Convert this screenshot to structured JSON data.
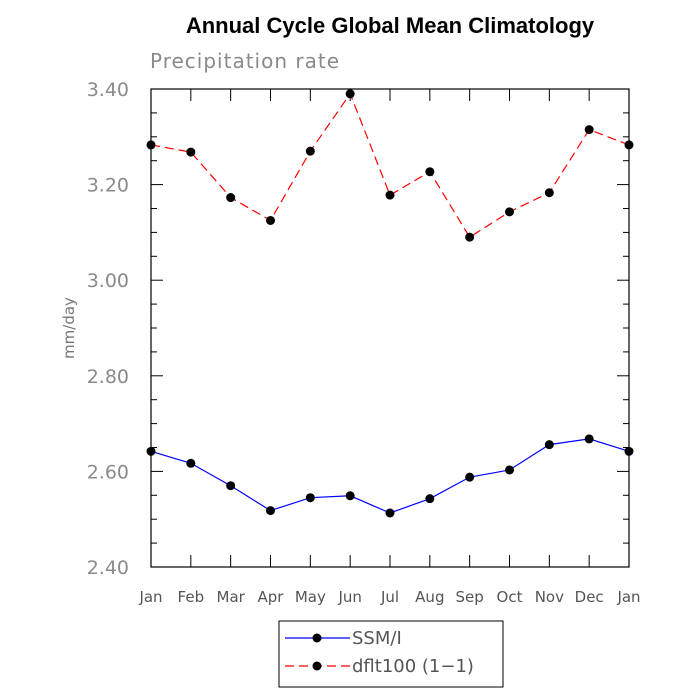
{
  "chart_data": {
    "type": "line",
    "title": "Annual Cycle Global Mean Climatology",
    "subtitle": "Precipitation rate",
    "xlabel": "",
    "ylabel": "mm/day",
    "ylim": [
      2.4,
      3.4
    ],
    "yticks": [
      "2.40",
      "2.60",
      "2.80",
      "3.00",
      "3.20",
      "3.40"
    ],
    "categories": [
      "Jan",
      "Feb",
      "Mar",
      "Apr",
      "May",
      "Jun",
      "Jul",
      "Aug",
      "Sep",
      "Oct",
      "Nov",
      "Dec",
      "Jan"
    ],
    "grid": false,
    "legend_position": "bottom",
    "series": [
      {
        "name": "SSM/I",
        "color": "#0000ff",
        "line_style": "solid",
        "marker": "filled-circle",
        "values": [
          2.642,
          2.617,
          2.57,
          2.518,
          2.545,
          2.549,
          2.513,
          2.543,
          2.588,
          2.603,
          2.656,
          2.668,
          2.642
        ]
      },
      {
        "name": "dflt100 (1−1)",
        "color": "#ff0000",
        "line_style": "dashed",
        "marker": "filled-circle",
        "values": [
          3.283,
          3.268,
          3.173,
          3.125,
          3.27,
          3.39,
          3.178,
          3.227,
          3.09,
          3.143,
          3.183,
          3.315,
          3.283
        ]
      }
    ]
  }
}
